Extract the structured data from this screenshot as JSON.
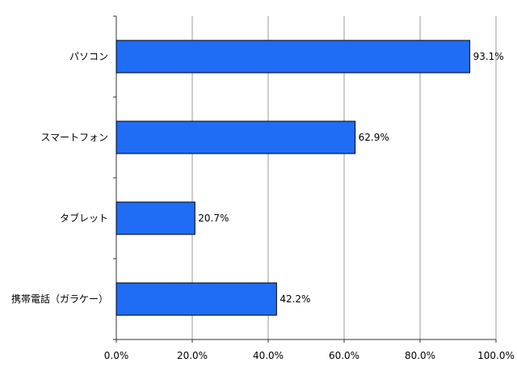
{
  "chart_data": {
    "type": "bar",
    "orientation": "horizontal",
    "categories": [
      "パソコン",
      "スマートフォン",
      "タブレット",
      "携帯電話（ガラケー）"
    ],
    "values": [
      93.1,
      62.9,
      20.7,
      42.2
    ],
    "value_labels": [
      "93.1%",
      "62.9%",
      "20.7%",
      "42.2%"
    ],
    "x_ticks": [
      "0.0%",
      "20.0%",
      "40.0%",
      "60.0%",
      "80.0%",
      "100.0%"
    ],
    "xlim": [
      0,
      100
    ],
    "grid": "vertical",
    "title": "",
    "xlabel": "",
    "ylabel": "",
    "colors": {
      "bar": "#1f6cf5",
      "bar_stroke": "#000000",
      "grid": "#999999",
      "axis": "#333333"
    }
  }
}
